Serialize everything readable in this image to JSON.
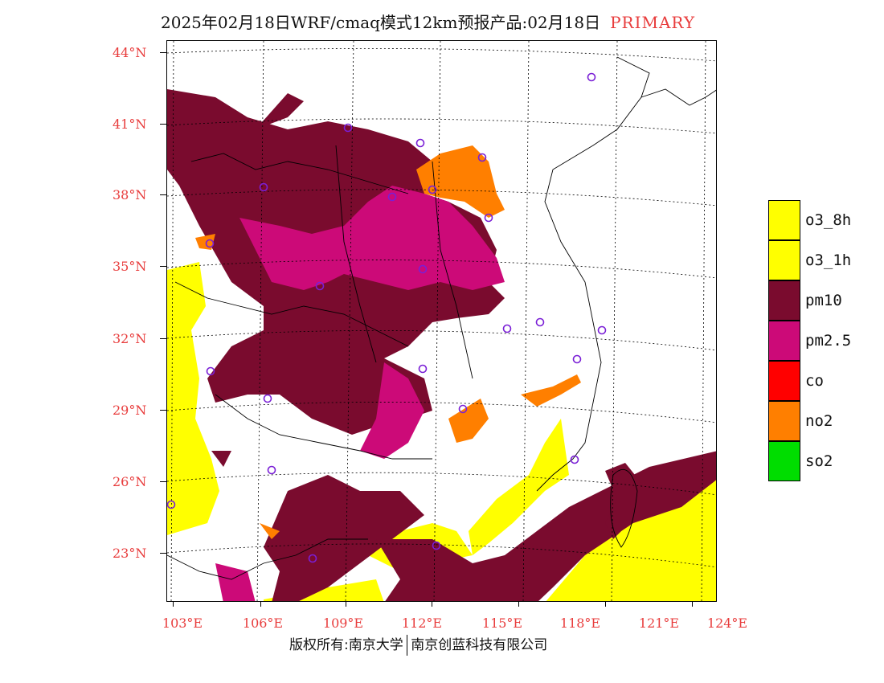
{
  "title": {
    "main": "2025年02月18日WRF/cmaq模式12km预报产品:02月18日",
    "tag": "PRIMARY"
  },
  "lat_labels": [
    "44°N",
    "41°N",
    "38°N",
    "35°N",
    "32°N",
    "29°N",
    "26°N",
    "23°N"
  ],
  "lon_labels": [
    "103°E",
    "106°E",
    "109°E",
    "112°E",
    "115°E",
    "118°E",
    "121°E",
    "124°E"
  ],
  "legend": [
    {
      "label": "o3_8h",
      "color": "#ffff00"
    },
    {
      "label": "o3_1h",
      "color": "#ffff00"
    },
    {
      "label": "pm10",
      "color": "#7a0b2e"
    },
    {
      "label": "pm2.5",
      "color": "#cc0a78"
    },
    {
      "label": "co",
      "color": "#ff0000"
    },
    {
      "label": "no2",
      "color": "#ff7f00"
    },
    {
      "label": "so2",
      "color": "#00dd00"
    }
  ],
  "footer": {
    "left": "版权所有:南京大学",
    "right": "南京创蓝科技有限公司"
  }
}
